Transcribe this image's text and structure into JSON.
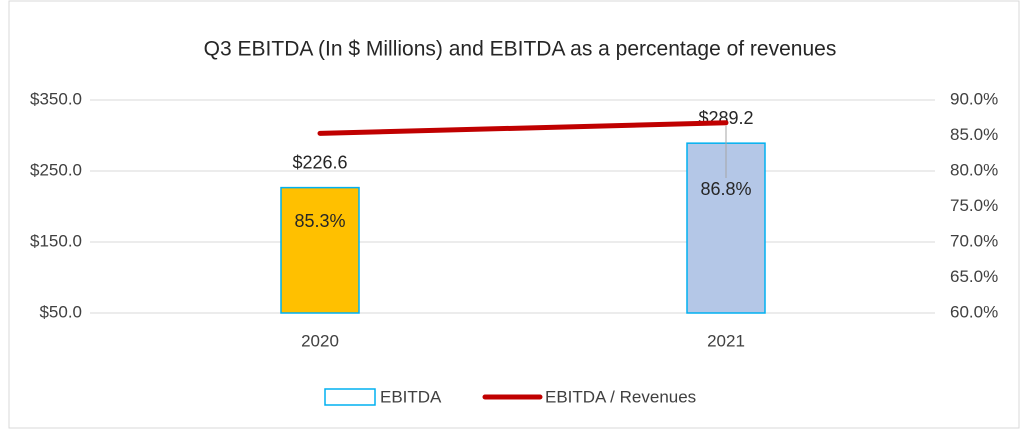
{
  "chart_data": {
    "type": "bar_line",
    "title": "Q3 EBITDA (In $ Millions) and EBITDA as a percentage of revenues",
    "categories": [
      "2020",
      "2021"
    ],
    "series": [
      {
        "name": "EBITDA",
        "color": "#00B0F0",
        "colors": [
          "#FFC000",
          "#B4C7E7"
        ],
        "values": [
          226.6,
          289.2
        ],
        "value_labels": [
          "$226.6",
          "$289.2"
        ]
      },
      {
        "name": "EBITDA / Revenues",
        "color": "#C00000",
        "axis": "y2",
        "values": [
          85.3,
          86.8
        ],
        "value_labels": [
          "85.3%",
          "86.8%"
        ]
      }
    ],
    "ylim": [
      50,
      350
    ],
    "yticks": [
      {
        "value": 50,
        "label": "$50.0"
      },
      {
        "value": 150,
        "label": "$150.0"
      },
      {
        "value": 250,
        "label": "$250.0"
      },
      {
        "value": 350,
        "label": "$350.0"
      }
    ],
    "y2lim": [
      60,
      90
    ],
    "y2ticks": [
      {
        "value": 60,
        "label": "60.0%"
      },
      {
        "value": 65,
        "label": "65.0%"
      },
      {
        "value": 70,
        "label": "70.0%"
      },
      {
        "value": 75,
        "label": "75.0%"
      },
      {
        "value": 80,
        "label": "80.0%"
      },
      {
        "value": 85,
        "label": "85.0%"
      },
      {
        "value": 90,
        "label": "90.0%"
      }
    ],
    "grid": true,
    "legend": "bottom"
  }
}
